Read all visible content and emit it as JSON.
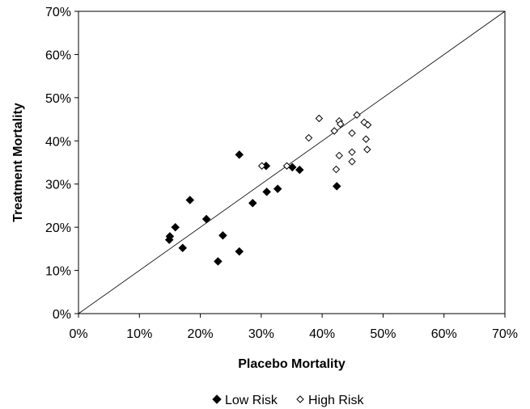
{
  "chart_data": {
    "type": "scatter",
    "xlabel": "Placebo Mortality",
    "ylabel": "Treatment Mortality",
    "xlim": [
      0,
      70
    ],
    "ylim": [
      0,
      70
    ],
    "x_ticks": [
      "0%",
      "10%",
      "20%",
      "30%",
      "40%",
      "50%",
      "60%",
      "70%"
    ],
    "y_ticks": [
      "0%",
      "10%",
      "20%",
      "30%",
      "40%",
      "50%",
      "60%",
      "70%"
    ],
    "grid": false,
    "reference_line": "y = x",
    "legend_position": "bottom",
    "series": [
      {
        "name": "Low Risk",
        "marker": "filled-diamond",
        "color": "#000000",
        "points": [
          [
            15.0,
            17.9
          ],
          [
            14.9,
            17.1
          ],
          [
            15.9,
            20.0
          ],
          [
            17.1,
            15.2
          ],
          [
            18.3,
            26.3
          ],
          [
            21.0,
            21.9
          ],
          [
            22.9,
            12.1
          ],
          [
            23.7,
            18.1
          ],
          [
            26.4,
            14.4
          ],
          [
            26.4,
            36.8
          ],
          [
            28.6,
            25.6
          ],
          [
            30.8,
            34.2
          ],
          [
            30.9,
            28.2
          ],
          [
            32.7,
            28.9
          ],
          [
            35.1,
            33.9
          ],
          [
            36.3,
            33.3
          ],
          [
            42.4,
            29.5
          ]
        ]
      },
      {
        "name": "High Risk",
        "marker": "open-diamond",
        "color": "#000000",
        "points": [
          [
            30.1,
            34.2
          ],
          [
            34.2,
            34.2
          ],
          [
            37.8,
            40.7
          ],
          [
            39.5,
            45.2
          ],
          [
            42.0,
            42.3
          ],
          [
            42.3,
            33.4
          ],
          [
            42.8,
            36.6
          ],
          [
            42.8,
            44.6
          ],
          [
            43.0,
            43.9
          ],
          [
            44.9,
            41.8
          ],
          [
            44.9,
            37.4
          ],
          [
            44.9,
            35.2
          ],
          [
            45.7,
            46.0
          ],
          [
            46.9,
            44.3
          ],
          [
            47.2,
            40.4
          ],
          [
            47.4,
            38.0
          ],
          [
            47.5,
            43.7
          ]
        ]
      }
    ]
  }
}
